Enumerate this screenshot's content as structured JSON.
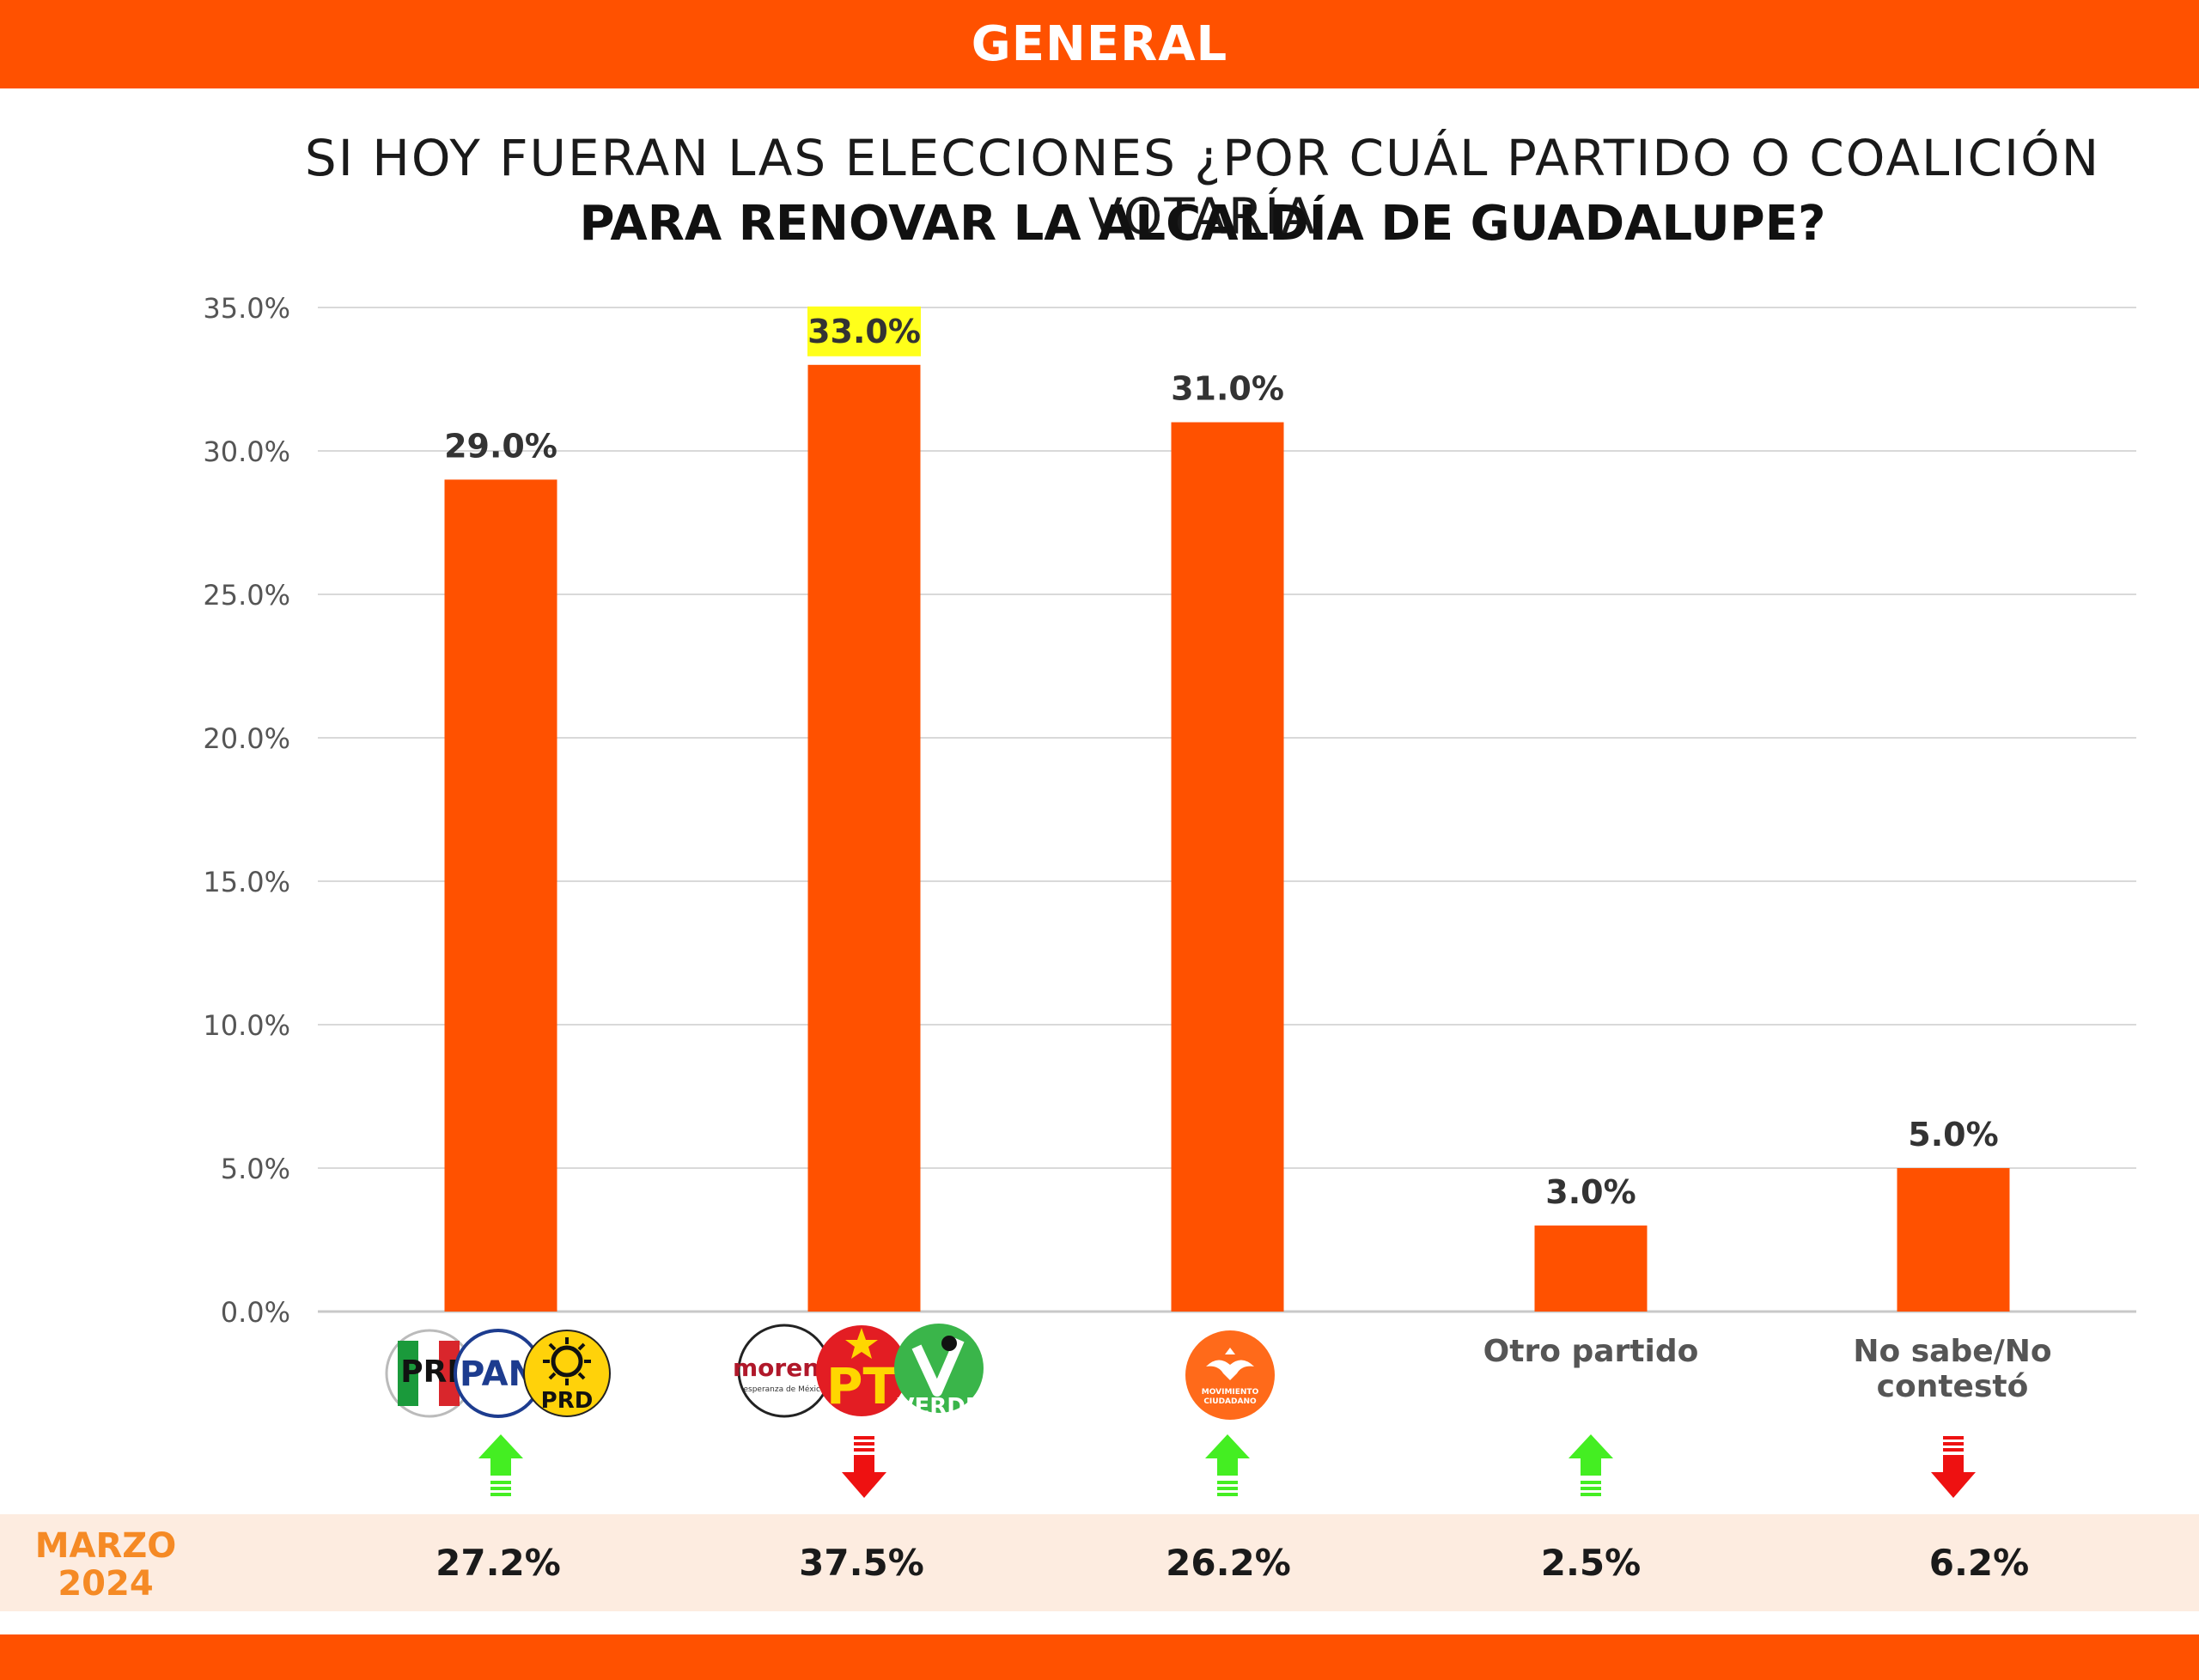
{
  "header": {
    "label": "GENERAL"
  },
  "title": {
    "line1": "SI HOY FUERAN LAS ELECCIONES ¿POR CUÁL PARTIDO O COALICIÓN VOTARÍA",
    "line2": "PARA RENOVAR LA ALCALDÍA DE GUADALUPE?"
  },
  "colors": {
    "brand": "#ff5100",
    "highlight": "#ffff1a",
    "up_arrow": "#44ee22",
    "down_arrow": "#ee1111",
    "march_label": "#f58a25",
    "march_band": "#fdece0"
  },
  "chart_data": {
    "type": "bar",
    "categories": [
      "PRI-PAN-PRD",
      "MORENA-PT-VERDE",
      "MOVIMIENTO CIUDADANO",
      "Otro partido",
      "No sabe/No contestó"
    ],
    "values": [
      29.0,
      33.0,
      31.0,
      3.0,
      5.0
    ],
    "data_labels": [
      "29.0%",
      "33.0%",
      "31.0%",
      "3.0%",
      "5.0%"
    ],
    "highlighted_index": 1,
    "ylim": [
      0,
      35
    ],
    "yticks": [
      0,
      5,
      10,
      15,
      20,
      25,
      30,
      35
    ],
    "ytick_labels": [
      "0.0%",
      "5.0%",
      "10.0%",
      "15.0%",
      "20.0%",
      "25.0%",
      "30.0%",
      "35.0%"
    ],
    "grid": true,
    "trend": [
      "up",
      "down",
      "up",
      "up",
      "down"
    ]
  },
  "categories_display": {
    "otro": "Otro partido",
    "nosabe": "No sabe/No contestó"
  },
  "logos": {
    "pri": "PRI",
    "pan": "PAN",
    "prd": "PRD",
    "morena": "morena",
    "morena_sub": "esperanza de México",
    "pt": "PT",
    "verde": "VERDE",
    "mc_line1": "MOVIMIENTO",
    "mc_line2": "CIUDADANO"
  },
  "previous": {
    "label_line1": "MARZO",
    "label_line2": "2024",
    "values": [
      "27.2%",
      "37.5%",
      "26.2%",
      "2.5%",
      "6.2%"
    ]
  }
}
